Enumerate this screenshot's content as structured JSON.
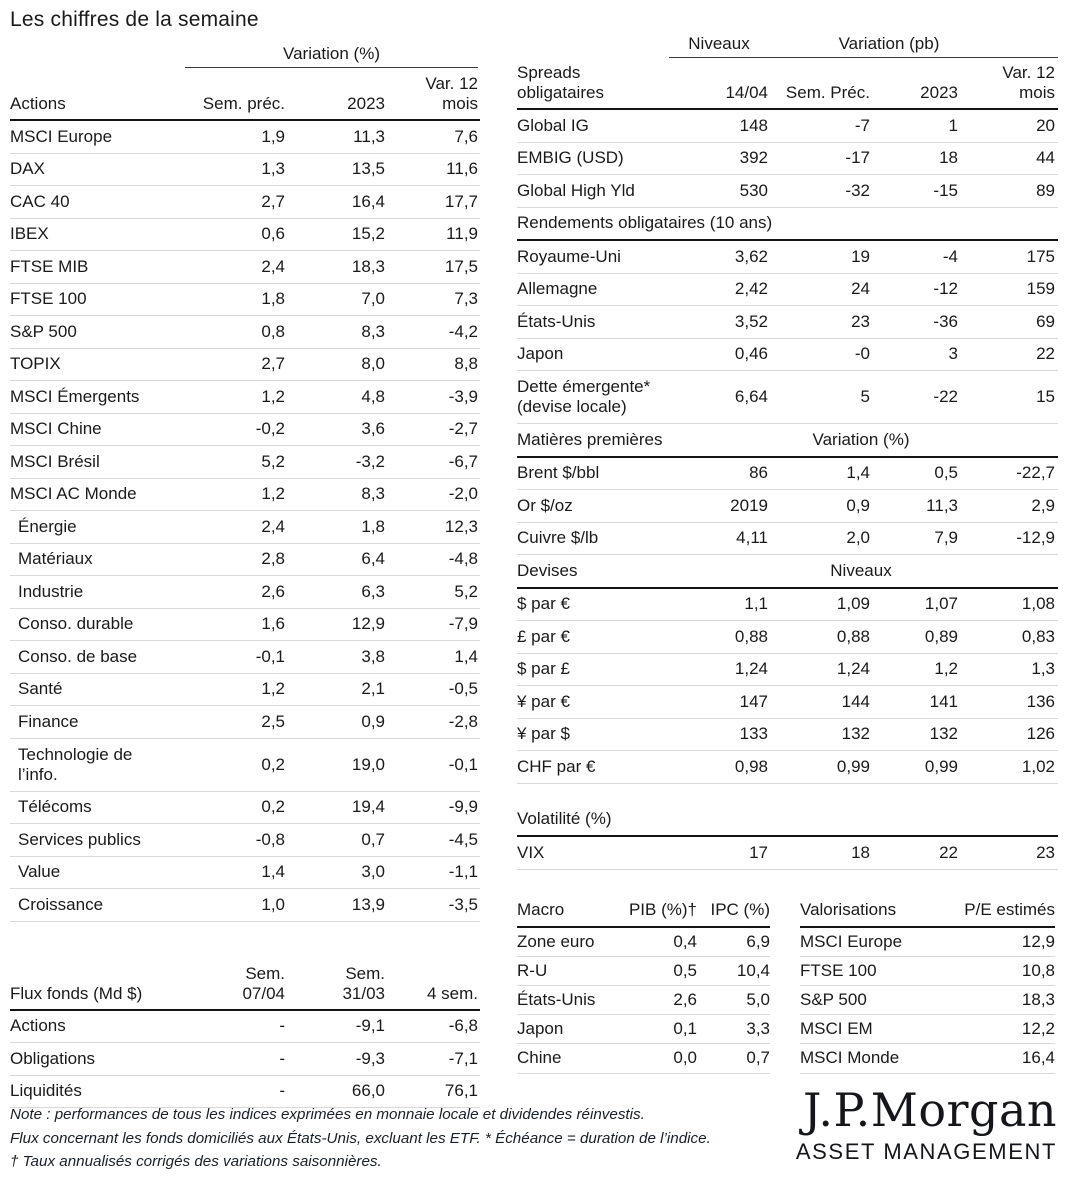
{
  "title": "Les chiffres de la semaine",
  "actions_table": {
    "group_header": "Variation (%)",
    "label_header": "Actions",
    "col_headers": [
      "Sem. préc.",
      "2023",
      "Var. 12\nmois"
    ],
    "rows": [
      {
        "label": "MSCI Europe",
        "c1": "1,9",
        "c2": "11,3",
        "c3": "7,6"
      },
      {
        "label": "DAX",
        "c1": "1,3",
        "c2": "13,5",
        "c3": "11,6"
      },
      {
        "label": "CAC 40",
        "c1": "2,7",
        "c2": "16,4",
        "c3": "17,7"
      },
      {
        "label": "IBEX",
        "c1": "0,6",
        "c2": "15,2",
        "c3": "11,9"
      },
      {
        "label": "FTSE MIB",
        "c1": "2,4",
        "c2": "18,3",
        "c3": "17,5"
      },
      {
        "label": "FTSE 100",
        "c1": "1,8",
        "c2": "7,0",
        "c3": "7,3"
      },
      {
        "label": "S&P 500",
        "c1": "0,8",
        "c2": "8,3",
        "c3": "-4,2"
      },
      {
        "label": "TOPIX",
        "c1": "2,7",
        "c2": "8,0",
        "c3": "8,8"
      },
      {
        "label": "MSCI Émergents",
        "c1": "1,2",
        "c2": "4,8",
        "c3": "-3,9"
      },
      {
        "label": "MSCI Chine",
        "c1": "-0,2",
        "c2": "3,6",
        "c3": "-2,7"
      },
      {
        "label": "MSCI Brésil",
        "c1": "5,2",
        "c2": "-3,2",
        "c3": "-6,7"
      },
      {
        "label": "MSCI AC Monde",
        "c1": "1,2",
        "c2": "8,3",
        "c3": "-2,0"
      },
      {
        "label": "Énergie",
        "c1": "2,4",
        "c2": "1,8",
        "c3": "12,3",
        "cls": "indent"
      },
      {
        "label": "Matériaux",
        "c1": "2,8",
        "c2": "6,4",
        "c3": "-4,8",
        "cls": "indent"
      },
      {
        "label": "Industrie",
        "c1": "2,6",
        "c2": "6,3",
        "c3": "5,2",
        "cls": "indent"
      },
      {
        "label": "Conso. durable",
        "c1": "1,6",
        "c2": "12,9",
        "c3": "-7,9",
        "cls": "indent"
      },
      {
        "label": "Conso. de base",
        "c1": "-0,1",
        "c2": "3,8",
        "c3": "1,4",
        "cls": "indent"
      },
      {
        "label": "Santé",
        "c1": "1,2",
        "c2": "2,1",
        "c3": "-0,5",
        "cls": "indent"
      },
      {
        "label": "Finance",
        "c1": "2,5",
        "c2": "0,9",
        "c3": "-2,8",
        "cls": "indent"
      },
      {
        "label": "Technologie de\nl’info.",
        "c1": "0,2",
        "c2": "19,0",
        "c3": "-0,1",
        "cls": "indent tall"
      },
      {
        "label": "Télécoms",
        "c1": "0,2",
        "c2": "19,4",
        "c3": "-9,9",
        "cls": "indent"
      },
      {
        "label": "Services publics",
        "c1": "-0,8",
        "c2": "0,7",
        "c3": "-4,5",
        "cls": "indent"
      },
      {
        "label": "Value",
        "c1": "1,4",
        "c2": "3,0",
        "c3": "-1,1",
        "cls": "indent"
      },
      {
        "label": "Croissance",
        "c1": "1,0",
        "c2": "13,9",
        "c3": "-3,5",
        "cls": "indent"
      }
    ]
  },
  "flux_table": {
    "label_header": "Flux fonds (Md $)",
    "col_headers": [
      "Sem.\n07/04",
      "Sem.\n31/03",
      "4 sem."
    ],
    "rows": [
      {
        "label": "Actions",
        "c1": "-",
        "c2": "-9,1",
        "c3": "-6,8"
      },
      {
        "label": "Obligations",
        "c1": "-",
        "c2": "-9,3",
        "c3": "-7,1"
      },
      {
        "label": "Liquidités",
        "c1": "-",
        "c2": "66,0",
        "c3": "76,1"
      }
    ]
  },
  "bond_table": {
    "group_headers": {
      "niveaux": "Niveaux",
      "variation": "Variation (pb)"
    },
    "label_header": "Spreads\nobligataires",
    "col_headers": [
      "14/04",
      "Sem. Préc.",
      "2023",
      "Var. 12\nmois"
    ],
    "spreads_rows": [
      {
        "label": "Global IG",
        "c1": "148",
        "c2": "-7",
        "c3": "1",
        "c4": "20"
      },
      {
        "label": "EMBIG (USD)",
        "c1": "392",
        "c2": "-17",
        "c3": "18",
        "c4": "44"
      },
      {
        "label": "Global High Yld",
        "c1": "530",
        "c2": "-32",
        "c3": "-15",
        "c4": "89"
      }
    ],
    "rendements_header": "Rendements obligataires (10 ans)",
    "rendements_rows": [
      {
        "label": "Royaume-Uni",
        "c1": "3,62",
        "c2": "19",
        "c3": "-4",
        "c4": "175"
      },
      {
        "label": "Allemagne",
        "c1": "2,42",
        "c2": "24",
        "c3": "-12",
        "c4": "159"
      },
      {
        "label": "États-Unis",
        "c1": "3,52",
        "c2": "23",
        "c3": "-36",
        "c4": "69"
      },
      {
        "label": "Japon",
        "c1": "0,46",
        "c2": "-0",
        "c3": "3",
        "c4": "22"
      },
      {
        "label": "Dette émergente*\n(devise locale)",
        "c1": "6,64",
        "c2": "5",
        "c3": "-22",
        "c4": "15",
        "cls": "tall"
      }
    ],
    "matieres_header": {
      "label": "Matières premières",
      "center": "Variation (%)"
    },
    "matieres_rows": [
      {
        "label": "Brent $/bbl",
        "c1": "86",
        "c2": "1,4",
        "c3": "0,5",
        "c4": "-22,7"
      },
      {
        "label": "Or $/oz",
        "c1": "2019",
        "c2": "0,9",
        "c3": "11,3",
        "c4": "2,9"
      },
      {
        "label": "Cuivre $/lb",
        "c1": "4,11",
        "c2": "2,0",
        "c3": "7,9",
        "c4": "-12,9"
      }
    ],
    "devises_header": {
      "label": "Devises",
      "center": "Niveaux"
    },
    "devises_rows": [
      {
        "label": "$ par €",
        "c1": "1,1",
        "c2": "1,09",
        "c3": "1,07",
        "c4": "1,08"
      },
      {
        "label": "£ par €",
        "c1": "0,88",
        "c2": "0,88",
        "c3": "0,89",
        "c4": "0,83"
      },
      {
        "label": "$ par £",
        "c1": "1,24",
        "c2": "1,24",
        "c3": "1,2",
        "c4": "1,3"
      },
      {
        "label": "¥ par €",
        "c1": "147",
        "c2": "144",
        "c3": "141",
        "c4": "136"
      },
      {
        "label": "¥ par $",
        "c1": "133",
        "c2": "132",
        "c3": "132",
        "c4": "126"
      },
      {
        "label": "CHF par €",
        "c1": "0,98",
        "c2": "0,99",
        "c3": "0,99",
        "c4": "1,02"
      }
    ],
    "volatilite_header": "Volatilité (%)",
    "volatilite_rows": [
      {
        "label": "VIX",
        "c1": "17",
        "c2": "18",
        "c3": "22",
        "c4": "23"
      }
    ]
  },
  "macro_table": {
    "label_header": "Macro",
    "col_headers": [
      "PIB (%)†",
      "IPC (%)"
    ],
    "rows": [
      {
        "label": "Zone euro",
        "c1": "0,4",
        "c2": "6,9"
      },
      {
        "label": "R-U",
        "c1": "0,5",
        "c2": "10,4"
      },
      {
        "label": "États-Unis",
        "c1": "2,6",
        "c2": "5,0"
      },
      {
        "label": "Japon",
        "c1": "0,1",
        "c2": "3,3"
      },
      {
        "label": "Chine",
        "c1": "0,0",
        "c2": "0,7"
      }
    ]
  },
  "valuations_table": {
    "label_header": "Valorisations",
    "value_header": "P/E estimés",
    "rows": [
      {
        "label": "MSCI Europe",
        "value": "12,9"
      },
      {
        "label": "FTSE 100",
        "value": "10,8"
      },
      {
        "label": "S&P 500",
        "value": "18,3"
      },
      {
        "label": "MSCI EM",
        "value": "12,2"
      },
      {
        "label": "MSCI Monde",
        "value": "16,4"
      }
    ]
  },
  "notes": [
    "Note : performances de tous les indices exprimées en monnaie locale et dividendes réinvestis.",
    "Flux concernant les fonds domiciliés aux États-Unis, excluant les ETF. * Échéance = duration de l’indice.",
    "† Taux annualisés corrigés des variations saisonnières."
  ],
  "logo": {
    "wordmark": "J.P.Morgan",
    "subtitle": "ASSET MANAGEMENT"
  }
}
